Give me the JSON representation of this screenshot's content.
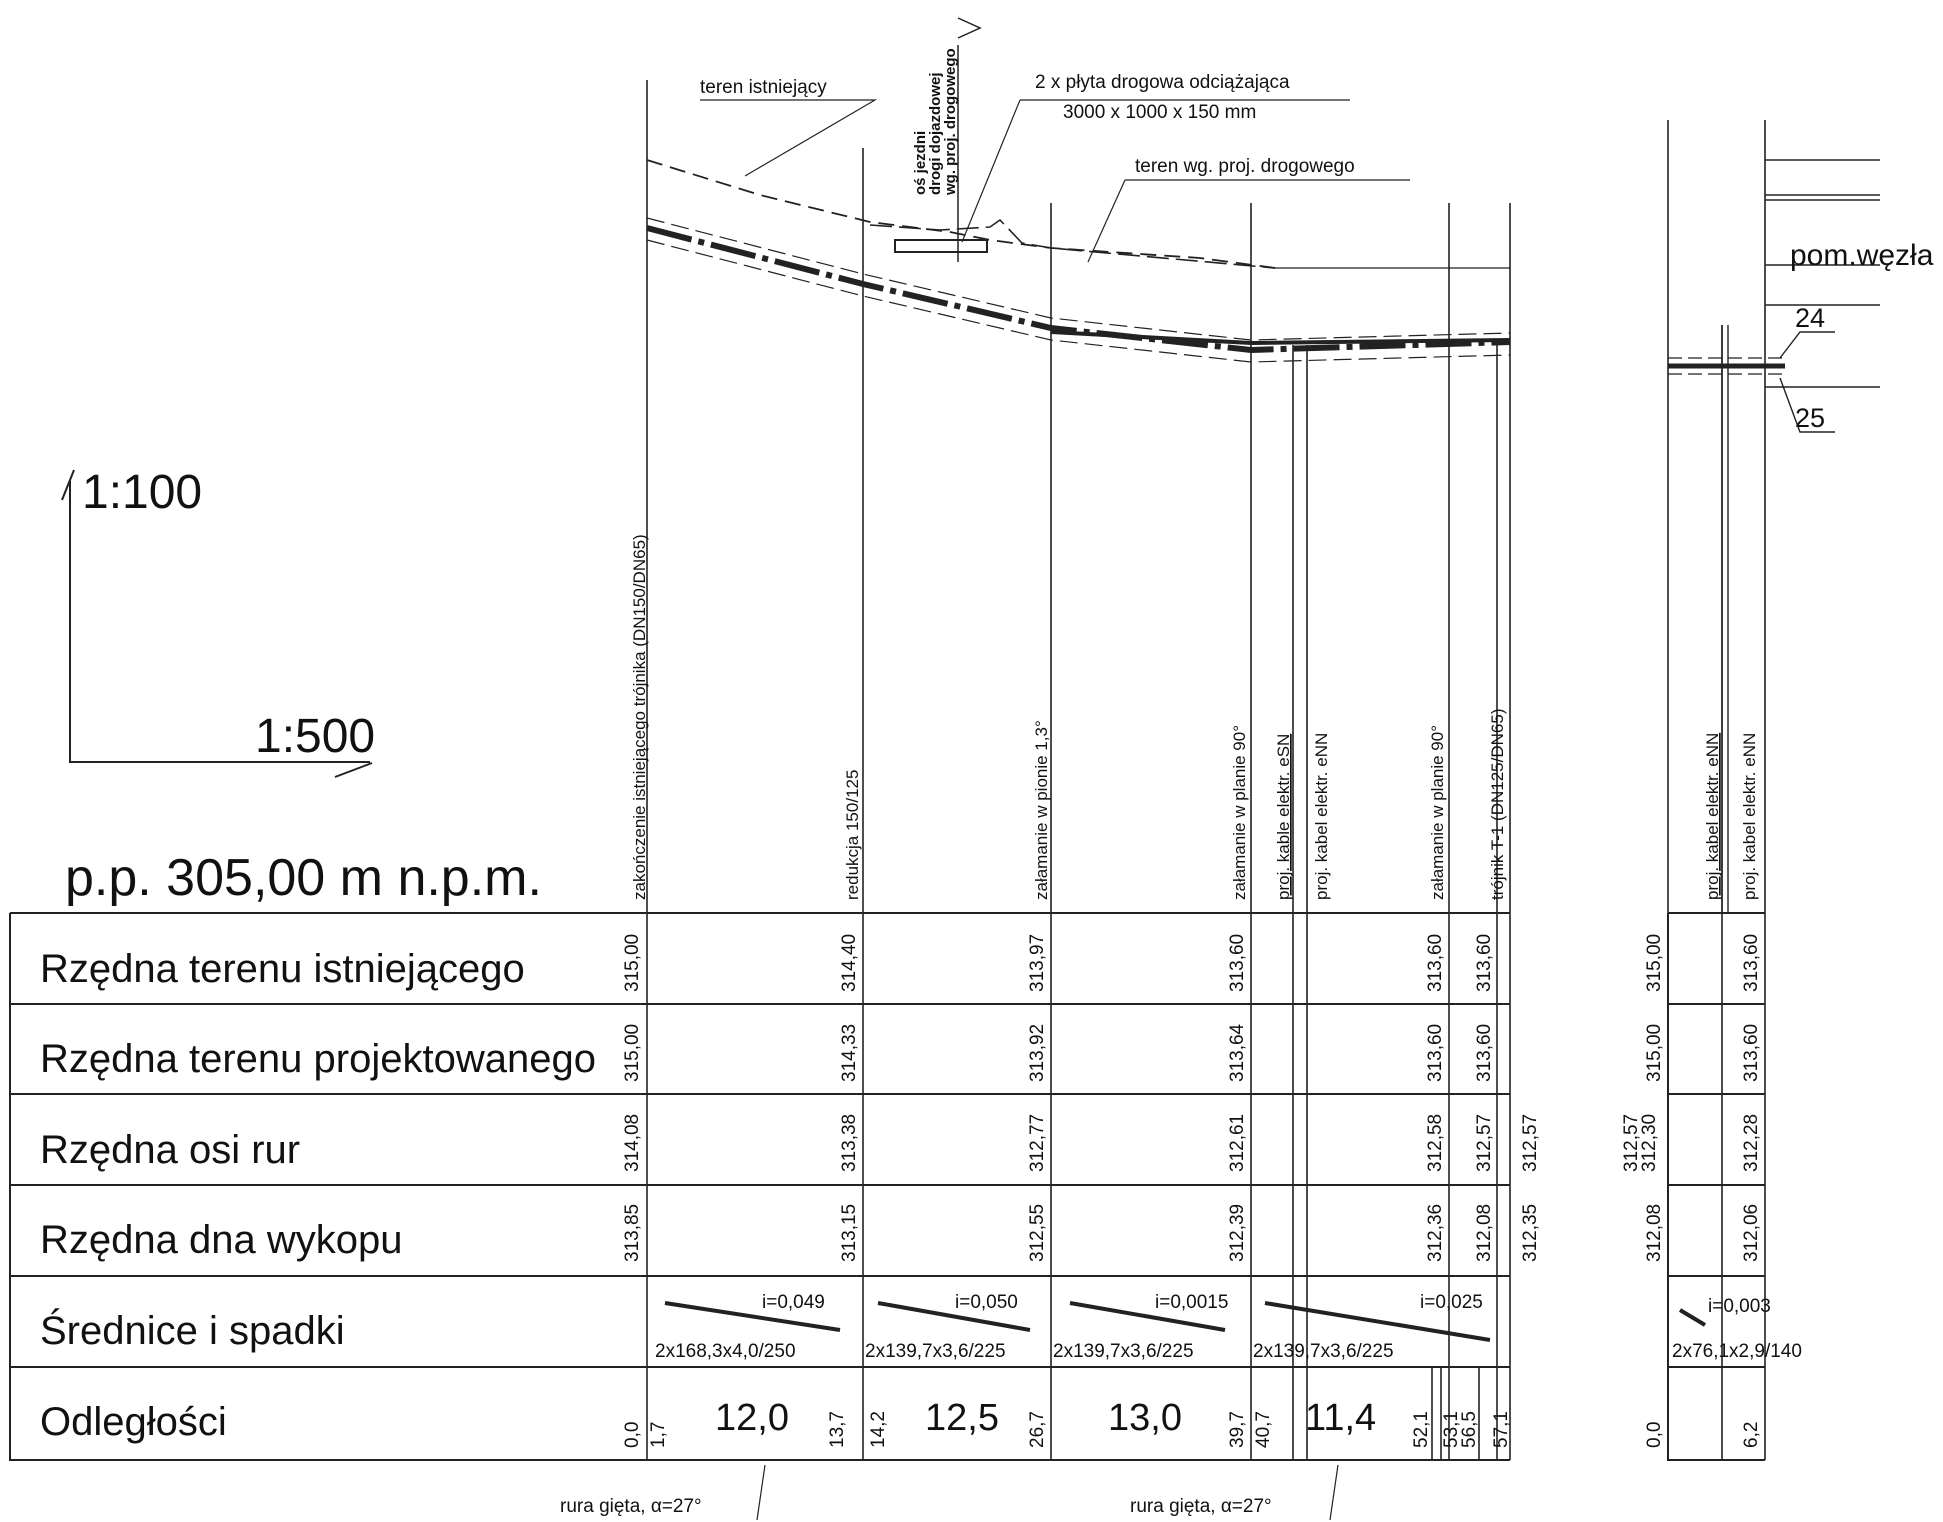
{
  "scales": {
    "vertical": "1:100",
    "horizontal": "1:500"
  },
  "datum": "p.p.  305,00 m n.p.m.",
  "room_label": "pom.węzła",
  "markers": [
    "24",
    "25"
  ],
  "annotations": {
    "existing_terrain": "teren istniejący",
    "road_axis_line1": "oś jezdni",
    "road_axis_line2": "drogi dojazdowej",
    "road_axis_line3": "wg. proj. drogowego",
    "relief_slab_line1": "2 x płyta drogowa odciążająca",
    "relief_slab_line2": "3000 x 1000 x 150 mm",
    "designed_terrain": "teren wg. proj. drogowego",
    "bent_pipe_1": "rura gięta, α=27°",
    "bent_pipe_2": "rura gięta, α=27°"
  },
  "station_labels": [
    "zakończenie istniejącego trójnika (DN150/DN65)",
    "redukcja 150/125",
    "załamanie w pionie 1,3°",
    "załamanie w planie 90°",
    "proj. kable elektr. eSN",
    "proj. kabel elektr. eNN",
    "załamanie w planie 90°",
    "trójnik T-1 (DN125/DN65)",
    "proj. kabel elektr. eNN",
    "proj. kabel elektr. eNN"
  ],
  "rows": [
    "Rzędna terenu istniejącego",
    "Rzędna terenu projektowanego",
    "Rzędna osi rur",
    "Rzędna dna wykopu",
    "Średnice i spadki",
    "Odległości"
  ],
  "existing_terrain_values": [
    "315,00",
    "314,40",
    "313,97",
    "313,60",
    "313,60",
    "313,60",
    "315,00",
    "313,60"
  ],
  "designed_terrain_values": [
    "315,00",
    "314,33",
    "313,92",
    "313,64",
    "313,60",
    "313,60",
    "315,00",
    "313,60"
  ],
  "pipe_axis_values": [
    "314,08",
    "313,38",
    "312,77",
    "312,61",
    "312,58",
    "312,57",
    "312,57",
    "312,57",
    "312,30",
    "312,28"
  ],
  "trench_bottom_values": [
    "313,85",
    "313,15",
    "312,55",
    "312,39",
    "312,36",
    "312,08",
    "312,35",
    "312,08",
    "312,06"
  ],
  "slopes": [
    "i=0,049",
    "i=0,050",
    "i=0,0015",
    "i=0,025",
    "i=0,003"
  ],
  "pipe_sizes": [
    "2x168,3x4,0/250",
    "2x139,7x3,6/225",
    "2x139,7x3,6/225",
    "2x139,7x3,6/225",
    "2x76,1x2,9/140"
  ],
  "distances_small": [
    "0,0",
    "1,7",
    "13,7",
    "14,2",
    "26,7",
    "39,7",
    "40,7",
    "52,1",
    "53,1",
    "56,5",
    "57,1",
    "0,0",
    "6,2"
  ],
  "segment_lengths": [
    "12,0",
    "12,5",
    "13,0",
    "11,4"
  ]
}
